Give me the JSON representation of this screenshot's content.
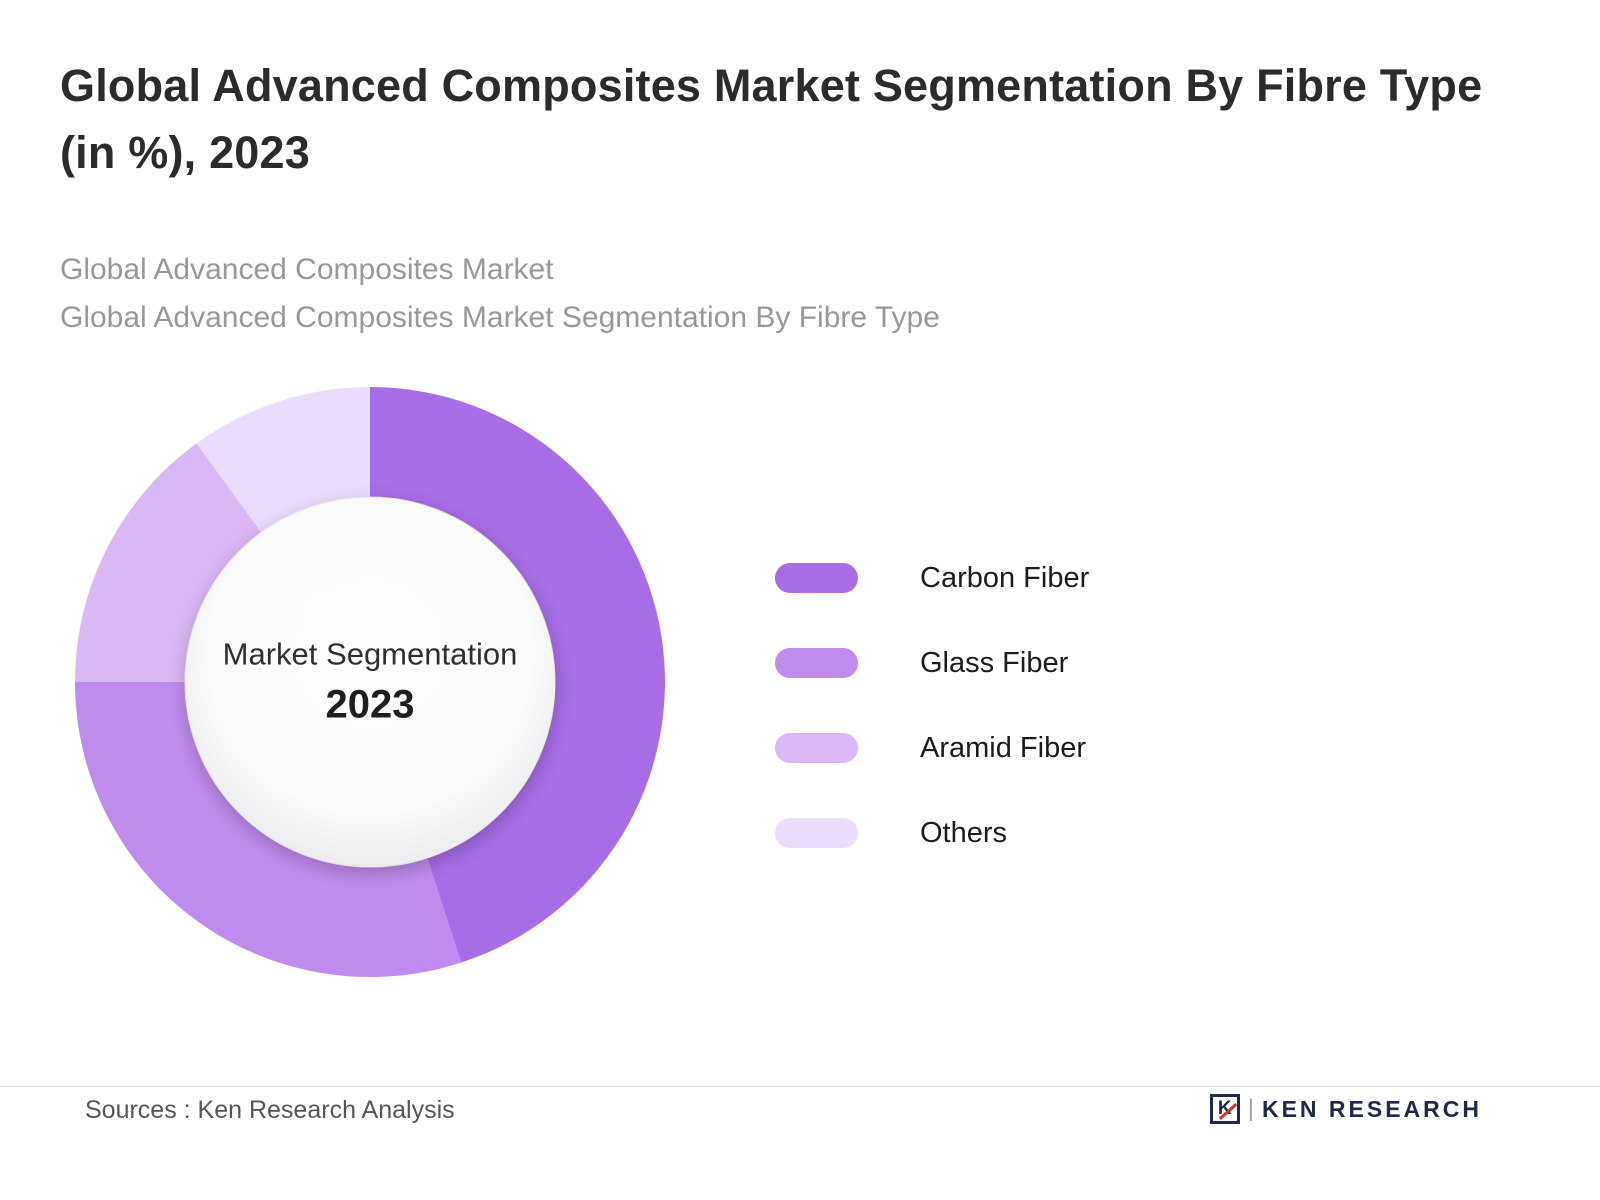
{
  "title": "Global Advanced Composites Market Segmentation By Fibre Type (in %), 2023",
  "subtitles": [
    "Global Advanced Composites Market",
    "Global Advanced Composites Market Segmentation By Fibre Type"
  ],
  "chart_data": {
    "type": "pie",
    "donut": true,
    "title": "Global Advanced Composites Market Segmentation By Fibre Type (in %), 2023",
    "center_label": "Market Segmentation",
    "center_year": "2023",
    "start_angle_deg": 0,
    "clockwise": true,
    "legend_position": "right",
    "outer_radius_px": 295,
    "inner_radius_px": 185,
    "slices": [
      {
        "label": "Carbon Fiber",
        "value": 45,
        "color": "#a76ce6"
      },
      {
        "label": "Glass Fiber",
        "value": 30,
        "color": "#bf8cee"
      },
      {
        "label": "Aramid Fiber",
        "value": 15,
        "color": "#d9b8f6"
      },
      {
        "label": "Others",
        "value": 10,
        "color": "#ecdcfc"
      }
    ]
  },
  "footer": {
    "sources": "Sources : Ken Research Analysis",
    "logo_letter": "K",
    "logo_text": "KEN RESEARCH"
  }
}
